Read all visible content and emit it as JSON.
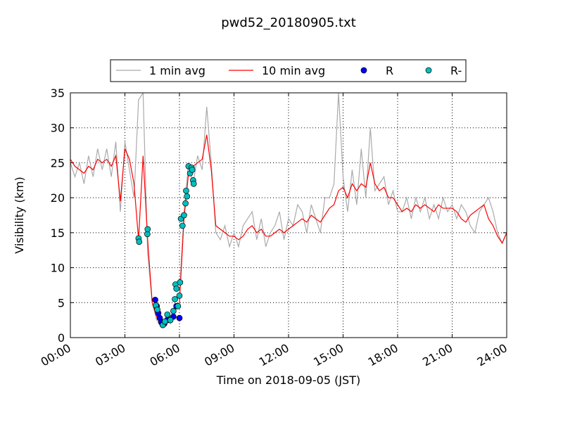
{
  "chart_data": {
    "type": "line",
    "title": "pwd52_20180905.txt",
    "xlabel": "Time on 2018-09-05 (JST)",
    "ylabel": "Visibility (km)",
    "xlim": [
      "00:00",
      "24:00"
    ],
    "xticks": [
      "00:00",
      "03:00",
      "06:00",
      "09:00",
      "12:00",
      "15:00",
      "18:00",
      "21:00",
      "24:00"
    ],
    "ylim": [
      0,
      35
    ],
    "yticks": [
      0,
      5,
      10,
      15,
      20,
      25,
      30,
      35
    ],
    "grid": true,
    "legend": "top",
    "series": [
      {
        "name": "1 min avg",
        "kind": "line",
        "color": "#aaaaaa",
        "x": [
          "00:00",
          "00:15",
          "00:30",
          "00:45",
          "01:00",
          "01:15",
          "01:30",
          "01:45",
          "02:00",
          "02:15",
          "02:30",
          "02:45",
          "03:00",
          "03:15",
          "03:30",
          "03:45",
          "04:00",
          "04:15",
          "04:30",
          "04:45",
          "05:00",
          "05:15",
          "05:30",
          "05:45",
          "06:00",
          "06:15",
          "06:30",
          "06:45",
          "07:00",
          "07:15",
          "07:30",
          "07:45",
          "08:00",
          "08:15",
          "08:30",
          "08:45",
          "09:00",
          "09:15",
          "09:30",
          "09:45",
          "10:00",
          "10:15",
          "10:30",
          "10:45",
          "11:00",
          "11:15",
          "11:30",
          "11:45",
          "12:00",
          "12:15",
          "12:30",
          "12:45",
          "13:00",
          "13:15",
          "13:30",
          "13:45",
          "14:00",
          "14:15",
          "14:30",
          "14:45",
          "15:00",
          "15:15",
          "15:30",
          "15:45",
          "16:00",
          "16:15",
          "16:30",
          "16:45",
          "17:00",
          "17:15",
          "17:30",
          "17:45",
          "18:00",
          "18:15",
          "18:30",
          "18:45",
          "19:00",
          "19:15",
          "19:30",
          "19:45",
          "20:00",
          "20:15",
          "20:30",
          "20:45",
          "21:00",
          "21:15",
          "21:30",
          "21:45",
          "22:00",
          "22:15",
          "22:30",
          "22:45",
          "23:00",
          "23:15",
          "23:30",
          "23:45",
          "24:00"
        ],
        "values": [
          25,
          23,
          25,
          22,
          26,
          23,
          27,
          24,
          27,
          23,
          28,
          18,
          28,
          24,
          20,
          34,
          35,
          12,
          5,
          2.5,
          1.5,
          3,
          2,
          5,
          6,
          18,
          25,
          22,
          26,
          24,
          33,
          25,
          15,
          14,
          16,
          13,
          15,
          13,
          16,
          17,
          18,
          14,
          17,
          13,
          15,
          16,
          18,
          14,
          17,
          16,
          19,
          18,
          15,
          19,
          17,
          15,
          20,
          20,
          22,
          35,
          23,
          18,
          24,
          19,
          27,
          20,
          30,
          21,
          22,
          23,
          19,
          21,
          18,
          18,
          20,
          17,
          20,
          18,
          20,
          17,
          19,
          17,
          20,
          18,
          19,
          17,
          19,
          18,
          16,
          15,
          18,
          19,
          20,
          18,
          15,
          13.5,
          15
        ]
      },
      {
        "name": "10 min avg",
        "kind": "line",
        "color": "#ff0000",
        "x": [
          "00:00",
          "00:15",
          "00:30",
          "00:45",
          "01:00",
          "01:15",
          "01:30",
          "01:45",
          "02:00",
          "02:15",
          "02:30",
          "02:45",
          "03:00",
          "03:15",
          "03:30",
          "03:45",
          "04:00",
          "04:15",
          "04:30",
          "04:45",
          "05:00",
          "05:15",
          "05:30",
          "05:45",
          "06:00",
          "06:15",
          "06:30",
          "06:45",
          "07:00",
          "07:15",
          "07:30",
          "07:45",
          "08:00",
          "08:15",
          "08:30",
          "08:45",
          "09:00",
          "09:15",
          "09:30",
          "09:45",
          "10:00",
          "10:15",
          "10:30",
          "10:45",
          "11:00",
          "11:15",
          "11:30",
          "11:45",
          "12:00",
          "12:15",
          "12:30",
          "12:45",
          "13:00",
          "13:15",
          "13:30",
          "13:45",
          "14:00",
          "14:15",
          "14:30",
          "14:45",
          "15:00",
          "15:15",
          "15:30",
          "15:45",
          "16:00",
          "16:15",
          "16:30",
          "16:45",
          "17:00",
          "17:15",
          "17:30",
          "17:45",
          "18:00",
          "18:15",
          "18:30",
          "18:45",
          "19:00",
          "19:15",
          "19:30",
          "19:45",
          "20:00",
          "20:15",
          "20:30",
          "20:45",
          "21:00",
          "21:15",
          "21:30",
          "21:45",
          "22:00",
          "22:15",
          "22:30",
          "22:45",
          "23:00",
          "23:15",
          "23:30",
          "23:45",
          "24:00"
        ],
        "values": [
          25.5,
          24.5,
          24,
          23.5,
          24.5,
          24,
          25.5,
          25,
          25.5,
          24.5,
          26,
          19.5,
          27,
          25.5,
          22,
          14,
          26,
          14,
          5,
          3,
          2,
          2.5,
          2.5,
          4,
          5,
          17,
          23.5,
          24.5,
          25,
          25.5,
          29,
          24,
          16,
          15.5,
          15,
          14.5,
          14.5,
          14,
          14.5,
          15.5,
          16,
          15,
          15.5,
          14.5,
          14.5,
          15,
          15.5,
          15,
          15.5,
          16,
          16.5,
          17,
          16.5,
          17.5,
          17,
          16.5,
          17.5,
          18.5,
          19,
          21,
          21.5,
          20,
          22,
          21,
          22,
          21.5,
          25,
          22,
          21,
          21.5,
          20,
          20,
          19,
          18,
          18.5,
          18,
          19,
          18.5,
          19,
          18.5,
          18,
          19,
          18.5,
          18.5,
          18.5,
          18,
          17,
          16.5,
          17.5,
          18,
          18.5,
          19,
          17,
          16,
          14.5,
          13.5,
          15
        ]
      },
      {
        "name": "R",
        "kind": "scatter",
        "color": "#0000ff",
        "x": [
          "04:40",
          "04:45",
          "04:50",
          "04:55",
          "05:00",
          "05:05",
          "05:10",
          "05:20",
          "05:30",
          "05:40",
          "05:50",
          "06:00"
        ],
        "values": [
          5.4,
          4.5,
          3.5,
          2.8,
          2.2,
          1.8,
          2.0,
          2.5,
          2.6,
          3.0,
          4.5,
          2.8
        ]
      },
      {
        "name": "R-",
        "kind": "scatter",
        "color": "#00bfbf",
        "x": [
          "03:45",
          "03:47",
          "04:14",
          "04:15",
          "04:42",
          "04:47",
          "05:05",
          "05:12",
          "05:20",
          "05:30",
          "05:40",
          "05:45",
          "05:47",
          "05:50",
          "05:55",
          "06:00",
          "06:02",
          "06:05",
          "06:10",
          "06:15",
          "06:20",
          "06:22",
          "06:25",
          "06:30",
          "06:35",
          "06:40",
          "06:42",
          "06:45",
          "06:47"
        ],
        "values": [
          14.2,
          13.7,
          14.8,
          15.5,
          4.6,
          4.0,
          1.8,
          2.3,
          3.3,
          2.5,
          3.8,
          5.5,
          7.6,
          7.0,
          4.5,
          6.0,
          7.9,
          17.0,
          16.0,
          17.5,
          19.2,
          21.0,
          20.2,
          24.5,
          23.5,
          24.3,
          24.0,
          22.5,
          22.0
        ]
      }
    ]
  }
}
